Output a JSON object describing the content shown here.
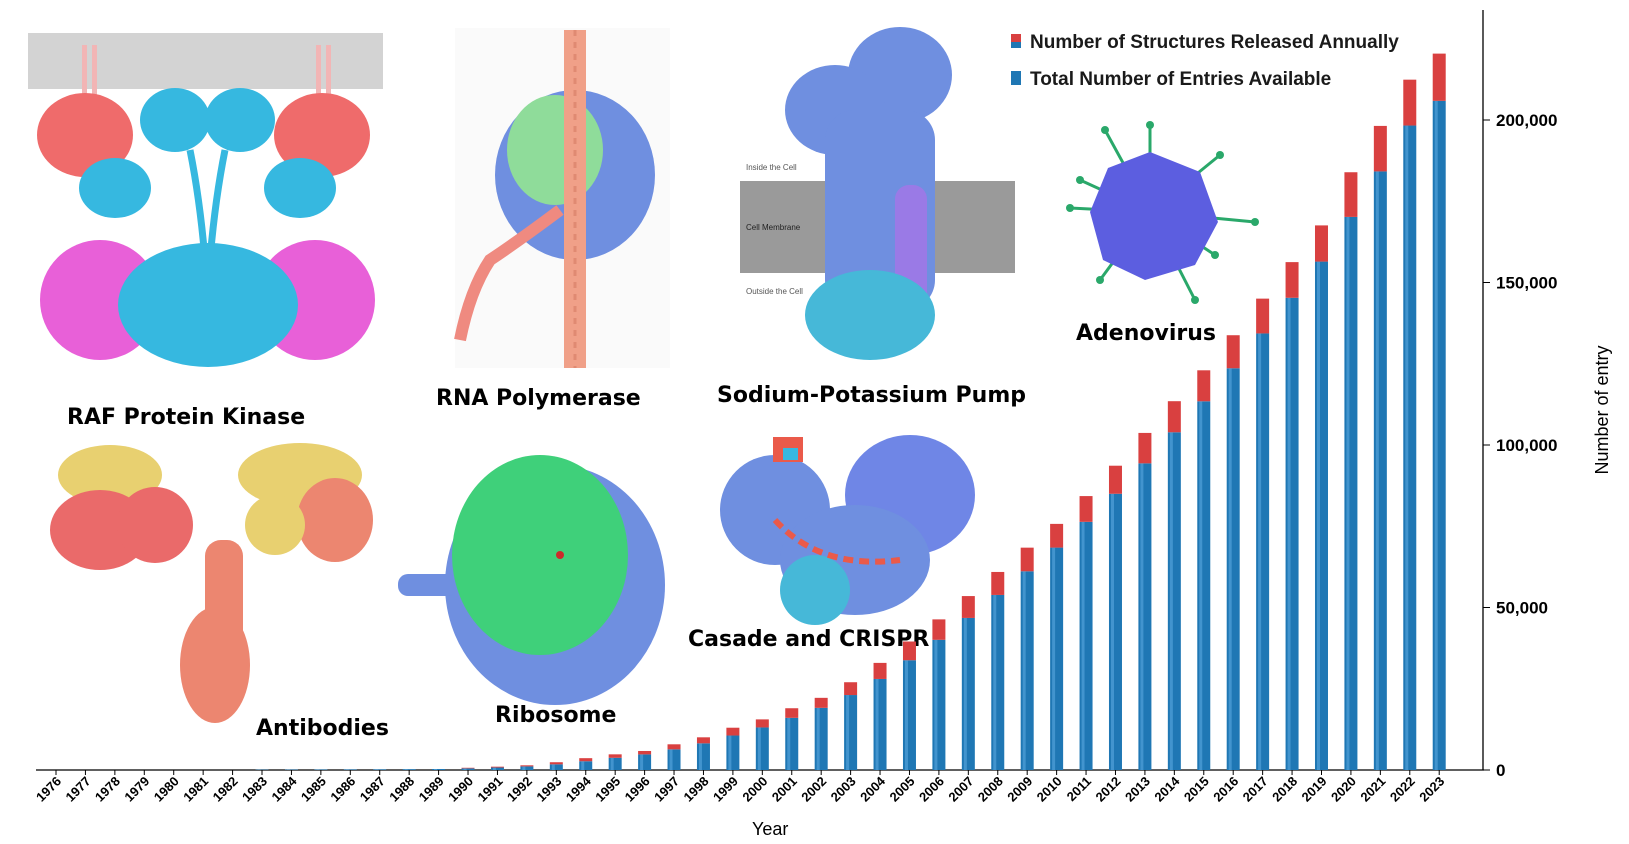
{
  "colors": {
    "released": "#d94040",
    "total": "#1f77b4",
    "total_highlight": "#5aa9e0"
  },
  "chart_data": {
    "type": "bar",
    "stacked": true,
    "xlabel": "Year",
    "ylabel": "Number of entry",
    "ylim": [
      0,
      225000
    ],
    "yticks": [
      0,
      50000,
      100000,
      150000,
      200000
    ],
    "ytick_labels": [
      "0",
      "50,000",
      "100,000",
      "150,000",
      "200,000"
    ],
    "y_axis_side": "right",
    "legend_placement": "top-right",
    "categories": [
      "1976",
      "1977",
      "1978",
      "1979",
      "1980",
      "1981",
      "1982",
      "1983",
      "1984",
      "1985",
      "1986",
      "1987",
      "1988",
      "1989",
      "1990",
      "1991",
      "1992",
      "1993",
      "1994",
      "1995",
      "1996",
      "1997",
      "1998",
      "1999",
      "2000",
      "2001",
      "2002",
      "2003",
      "2004",
      "2005",
      "2006",
      "2007",
      "2008",
      "2009",
      "2010",
      "2011",
      "2012",
      "2013",
      "2014",
      "2015",
      "2016",
      "2017",
      "2018",
      "2019",
      "2020",
      "2021",
      "2022",
      "2023"
    ],
    "series": [
      {
        "name": "Total Number of Entries Available",
        "values": [
          13,
          23,
          36,
          49,
          64,
          77,
          92,
          112,
          137,
          158,
          179,
          201,
          246,
          308,
          496,
          759,
          1102,
          1748,
          2694,
          3757,
          4805,
          6356,
          8206,
          10609,
          13092,
          16048,
          19126,
          23066,
          28011,
          33773,
          40059,
          46788,
          53863,
          61139,
          68433,
          76358,
          84993,
          94354,
          103917,
          113450,
          123614,
          134326,
          145299,
          156434,
          170180,
          184181,
          198296,
          205896
        ],
        "color_key": "total"
      },
      {
        "name": "Number of Structures Released Annually",
        "values": [
          13,
          10,
          13,
          13,
          15,
          13,
          15,
          20,
          25,
          21,
          21,
          22,
          45,
          62,
          188,
          263,
          343,
          646,
          946,
          1063,
          1048,
          1551,
          1850,
          2403,
          2483,
          2956,
          3078,
          3940,
          4945,
          5762,
          6286,
          6729,
          7075,
          7276,
          7294,
          7925,
          8635,
          9361,
          9563,
          9533,
          10164,
          10712,
          10973,
          11135,
          13746,
          14001,
          14115,
          14531
        ],
        "color_key": "released"
      }
    ]
  },
  "illustrations": [
    {
      "key": "raf",
      "label": "RAF Protein Kinase"
    },
    {
      "key": "rnap",
      "label": "RNA Polymerase"
    },
    {
      "key": "nak",
      "label": "Sodium-Potassium Pump"
    },
    {
      "key": "adeno",
      "label": "Adenovirus"
    },
    {
      "key": "antibody",
      "label": "Antibodies"
    },
    {
      "key": "ribosome",
      "label": "Ribosome"
    },
    {
      "key": "casade",
      "label": "Casade and CRISPR"
    }
  ],
  "membrane_labels": {
    "inside": "Inside the Cell",
    "membrane": "Cell Membrane",
    "outside": "Outside the Cell"
  }
}
